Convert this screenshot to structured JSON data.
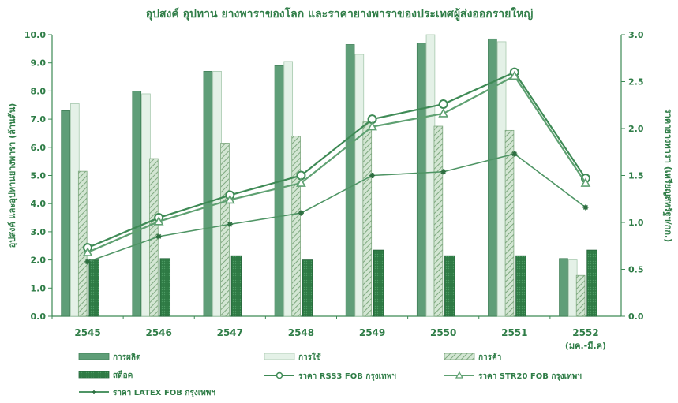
{
  "chart_data": {
    "type": "bar",
    "title": "อุปสงค์ อุปทาน ยางพาราของโลก และราคายางพาราของประเทศผู้ส่งออกรายใหญ่",
    "categories": [
      "2545",
      "2546",
      "2547",
      "2548",
      "2549",
      "2550",
      "2551",
      "2552"
    ],
    "category_sublabels": [
      "",
      "",
      "",
      "",
      "",
      "",
      "",
      "(มค.-มี.ค)"
    ],
    "ylabel_left": "อุปสงค์ และอุปทานยางพารา (ล้านตัน)",
    "ylabel_right": "ราคายางพารา (เหรียญสหรัฐฯ/กก.)",
    "ylim_left": [
      0,
      10
    ],
    "ylim_right": [
      0,
      3
    ],
    "left_ticks": [
      "0.0",
      "1.0",
      "2.0",
      "3.0",
      "4.0",
      "5.0",
      "6.0",
      "7.0",
      "8.0",
      "9.0",
      "10.0"
    ],
    "right_ticks": [
      "0.0",
      "0.5",
      "1.0",
      "1.5",
      "2.0",
      "2.5",
      "3.0"
    ],
    "bar_series": [
      {
        "name": "การผลิต",
        "values": [
          7.3,
          8.0,
          8.7,
          8.9,
          9.65,
          9.7,
          9.85,
          2.05
        ],
        "color": "#5f9e78"
      },
      {
        "name": "การใช้",
        "values": [
          7.55,
          7.9,
          8.7,
          9.05,
          9.3,
          10.0,
          9.75,
          2.0
        ],
        "color": "#e4f1e7"
      },
      {
        "name": "การค้า",
        "values": [
          5.15,
          5.6,
          6.15,
          6.4,
          6.9,
          6.75,
          6.6,
          1.45
        ],
        "color": "#a9caa9"
      },
      {
        "name": "สต็อค",
        "values": [
          2.0,
          2.05,
          2.15,
          2.0,
          2.35,
          2.15,
          2.15,
          2.35
        ],
        "color": "#2f7a45"
      }
    ],
    "line_series": [
      {
        "name": "ราคา RSS3 FOB กรุงเทพฯ",
        "values": [
          0.73,
          1.05,
          1.29,
          1.5,
          2.1,
          2.26,
          2.6,
          1.47
        ],
        "color": "#3e8a55",
        "marker": "circle"
      },
      {
        "name": "ราคา STR20 FOB กรุงเทพฯ",
        "values": [
          0.68,
          1.01,
          1.24,
          1.42,
          2.02,
          2.16,
          2.56,
          1.42
        ],
        "color": "#5fa172",
        "marker": "triangle"
      },
      {
        "name": "ราคา LATEX FOB กรุงเทพฯ",
        "values": [
          0.58,
          0.85,
          0.98,
          1.1,
          1.5,
          1.54,
          1.73,
          1.16
        ],
        "color": "#4f9565",
        "marker": "star"
      }
    ],
    "grid": false,
    "legend_position": "bottom"
  }
}
